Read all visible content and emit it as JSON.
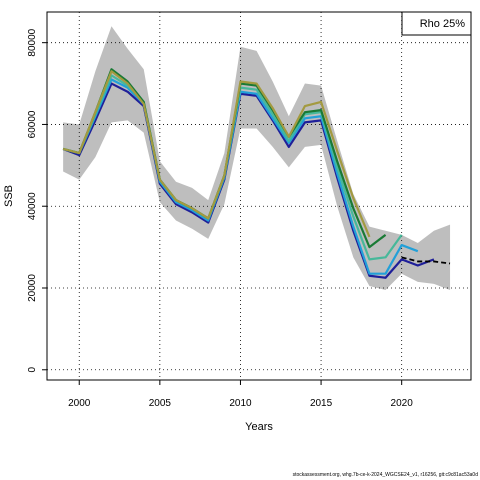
{
  "chart_data": {
    "type": "line",
    "xlabel": "Years",
    "ylabel": "SSB",
    "xlim": [
      1998,
      2024.3
    ],
    "ylim": [
      -2500,
      87500
    ],
    "x_ticks": [
      2000,
      2005,
      2010,
      2015,
      2020
    ],
    "y_ticks": [
      0,
      20000,
      40000,
      60000,
      80000
    ],
    "grid": true,
    "legend": {
      "text": "Rho 25%",
      "placement": "top-right"
    },
    "band": {
      "color": "#bebebe",
      "x": [
        1999,
        2000,
        2001,
        2002,
        2003,
        2004,
        2005,
        2006,
        2007,
        2008,
        2009,
        2010,
        2011,
        2012,
        2013,
        2014,
        2015,
        2016,
        2017,
        2018,
        2019,
        2020,
        2021,
        2022,
        2023
      ],
      "upper": [
        60500,
        60000,
        73000,
        84000,
        78500,
        73500,
        51000,
        46000,
        44500,
        41500,
        53000,
        79000,
        78000,
        70500,
        62000,
        70000,
        69500,
        56000,
        43000,
        35000,
        34000,
        33000,
        31000,
        34000,
        35500
      ],
      "lower": [
        48500,
        46500,
        52000,
        60500,
        61000,
        58000,
        41000,
        36500,
        34500,
        32000,
        40500,
        59000,
        59000,
        54500,
        49500,
        54500,
        55000,
        40000,
        27500,
        20500,
        19500,
        23500,
        21500,
        21000,
        19500
      ]
    },
    "series": [
      {
        "color": "#1f1f99",
        "x": [
          1999,
          2000,
          2001,
          2002,
          2003,
          2004,
          2005,
          2006,
          2007,
          2008,
          2009,
          2010,
          2011,
          2012,
          2013,
          2014,
          2015,
          2016,
          2017,
          2018,
          2019,
          2020,
          2021,
          2022
        ],
        "values": [
          54000,
          52500,
          61000,
          70000,
          68000,
          64500,
          45500,
          40500,
          38500,
          36000,
          46500,
          67500,
          67000,
          61000,
          54500,
          60500,
          61000,
          47000,
          34000,
          23000,
          22500,
          27000,
          25500,
          27000
        ]
      },
      {
        "color": "#22a0d8",
        "x": [
          1999,
          2000,
          2001,
          2002,
          2003,
          2004,
          2005,
          2006,
          2007,
          2008,
          2009,
          2010,
          2011,
          2012,
          2013,
          2014,
          2015,
          2016,
          2017,
          2018,
          2019,
          2020,
          2021
        ],
        "values": [
          54000,
          53000,
          62000,
          71000,
          69000,
          65000,
          46000,
          41000,
          39000,
          36500,
          47000,
          68000,
          67500,
          61500,
          55500,
          61500,
          62000,
          48000,
          35000,
          23500,
          23500,
          30500,
          29000
        ]
      },
      {
        "color": "#47b89a",
        "x": [
          1999,
          2000,
          2001,
          2002,
          2003,
          2004,
          2005,
          2006,
          2007,
          2008,
          2009,
          2010,
          2011,
          2012,
          2013,
          2014,
          2015,
          2016,
          2017,
          2018,
          2019,
          2020
        ],
        "values": [
          54000,
          53000,
          62500,
          72000,
          69500,
          65500,
          46500,
          41500,
          39500,
          37000,
          47500,
          69000,
          68500,
          62500,
          56000,
          62500,
          63000,
          49500,
          37500,
          27000,
          27500,
          33000
        ]
      },
      {
        "color": "#1a7a35",
        "x": [
          1999,
          2000,
          2001,
          2002,
          2003,
          2004,
          2005,
          2006,
          2007,
          2008,
          2009,
          2010,
          2011,
          2012,
          2013,
          2014,
          2015,
          2016,
          2017,
          2018,
          2019
        ],
        "values": [
          54000,
          53000,
          63000,
          73500,
          70500,
          65500,
          46500,
          41500,
          39500,
          37000,
          47500,
          70000,
          69500,
          63500,
          57000,
          63000,
          63500,
          51000,
          39500,
          30000,
          33000
        ]
      },
      {
        "color": "#a39a40",
        "x": [
          1999,
          2000,
          2001,
          2002,
          2003,
          2004,
          2005,
          2006,
          2007,
          2008,
          2009,
          2010,
          2011,
          2012,
          2013,
          2014,
          2015,
          2016,
          2017,
          2018
        ],
        "values": [
          54000,
          53000,
          63000,
          73000,
          70000,
          65000,
          46500,
          41500,
          39500,
          37000,
          47500,
          70500,
          70000,
          64000,
          57000,
          64500,
          65500,
          53500,
          42000,
          32500
        ]
      }
    ],
    "dashed_series": {
      "color": "#000000",
      "x": [
        2020,
        2021,
        2022,
        2023
      ],
      "values": [
        27500,
        26500,
        26500,
        26000
      ]
    }
  },
  "footer": "stockassessment.org, whg.7b-ce-k-2024_WGCSE24_v1, r16256, git:c9c81ac53a0d"
}
